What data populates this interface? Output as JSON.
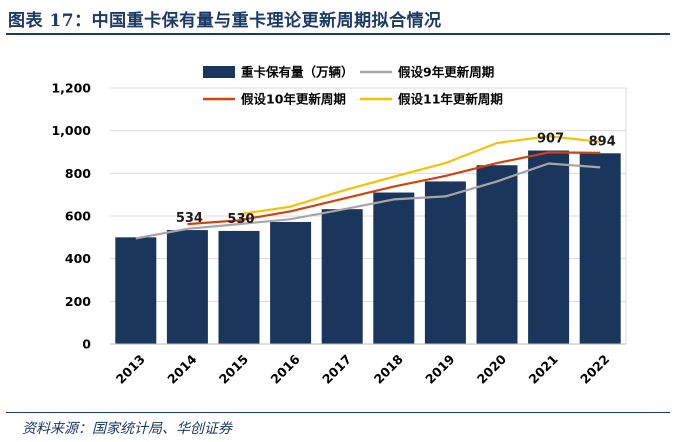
{
  "figure": {
    "title": "图表 17：中国重卡保有量与重卡理论更新周期拟合情况",
    "source": "资料来源：国家统计局、华创证券"
  },
  "colors": {
    "bars": "#1b365d",
    "line9": "#a6a6a6",
    "line10": "#d4420c",
    "line11": "#f5c200",
    "grid": "#d9d9d9",
    "axis_text": "#000000",
    "header": "#1b3a66"
  },
  "chart_data": {
    "type": "bar",
    "categories": [
      "2013",
      "2014",
      "2015",
      "2016",
      "2017",
      "2018",
      "2019",
      "2020",
      "2021",
      "2022"
    ],
    "ylim": [
      0,
      1200
    ],
    "yticks": [
      0,
      200,
      400,
      600,
      800,
      1000,
      1200
    ],
    "ytick_labels": [
      "0",
      "200",
      "400",
      "600",
      "800",
      "1,000",
      "1,200"
    ],
    "grid": true,
    "legend_position": "top",
    "series": [
      {
        "name": "重卡保有量（万辆）",
        "type": "bar",
        "color_key": "bars",
        "values": [
          500,
          534,
          530,
          572,
          632,
          710,
          762,
          838,
          907,
          894
        ]
      },
      {
        "name": "假设9年更新周期",
        "type": "line",
        "color_key": "line9",
        "values": [
          495,
          540,
          562,
          585,
          630,
          678,
          692,
          762,
          846,
          828
        ]
      },
      {
        "name": "假设10年更新周期",
        "type": "line",
        "color_key": "line10",
        "values": [
          null,
          562,
          580,
          622,
          680,
          738,
          788,
          848,
          898,
          896
        ]
      },
      {
        "name": "假设11年更新周期",
        "type": "line",
        "color_key": "line11",
        "values": [
          null,
          null,
          608,
          644,
          718,
          784,
          848,
          942,
          974,
          948
        ]
      }
    ],
    "data_labels": [
      {
        "category": "2014",
        "text": "534"
      },
      {
        "category": "2015",
        "text": "530"
      },
      {
        "category": "2021",
        "text": "907"
      },
      {
        "category": "2022",
        "text": "894"
      }
    ]
  }
}
